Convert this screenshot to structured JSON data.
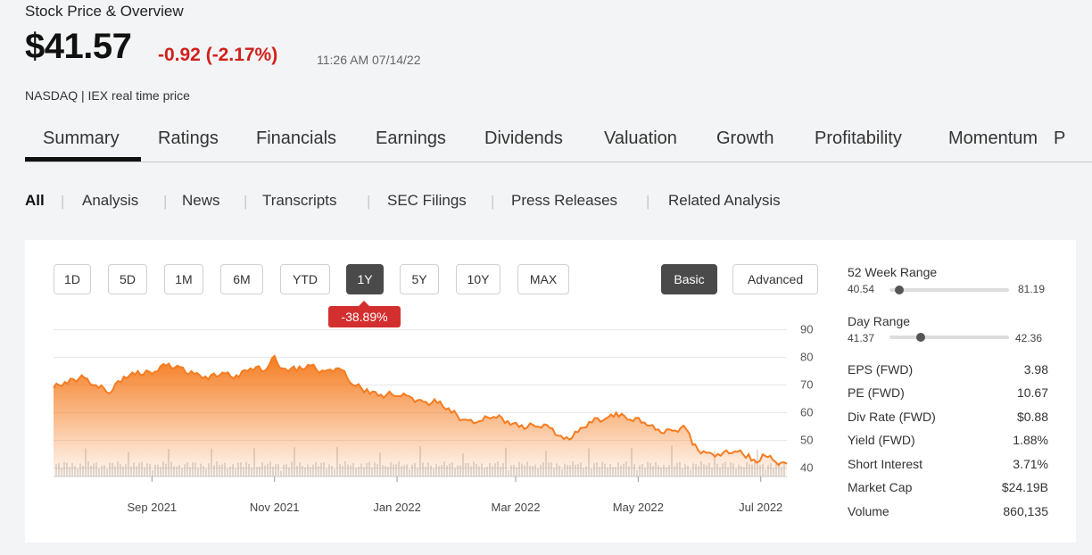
{
  "header": {
    "section_title": "Stock Price & Overview",
    "price": "$41.57",
    "change": "-0.92 (-2.17%)",
    "timestamp": "11:26 AM 07/14/22",
    "exchange_note": "NASDAQ | IEX real time price"
  },
  "tabs": [
    "Summary",
    "Ratings",
    "Financials",
    "Earnings",
    "Dividends",
    "Valuation",
    "Growth",
    "Profitability",
    "Momentum",
    "P"
  ],
  "active_tab": "Summary",
  "subnav": [
    "All",
    "Analysis",
    "News",
    "Transcripts",
    "SEC Filings",
    "Press Releases",
    "Related Analysis"
  ],
  "active_subnav": "All",
  "ranges": [
    "1D",
    "5D",
    "1M",
    "6M",
    "YTD",
    "1Y",
    "5Y",
    "10Y",
    "MAX"
  ],
  "active_range": "1Y",
  "range_change_badge": "-38.89%",
  "modes": {
    "basic": "Basic",
    "advanced": "Advanced",
    "active": "Basic"
  },
  "stats": {
    "week52": {
      "label": "52 Week Range",
      "low": "40.54",
      "high": "81.19",
      "current": 41.57
    },
    "day": {
      "label": "Day Range",
      "low": "41.37",
      "high": "42.36",
      "current": 41.57
    },
    "rows": [
      {
        "label": "EPS (FWD)",
        "value": "3.98"
      },
      {
        "label": "PE (FWD)",
        "value": "10.67"
      },
      {
        "label": "Div Rate (FWD)",
        "value": "$0.88"
      },
      {
        "label": "Yield (FWD)",
        "value": "1.88%"
      },
      {
        "label": "Short Interest",
        "value": "3.71%"
      },
      {
        "label": "Market Cap",
        "value": "$24.19B"
      },
      {
        "label": "Volume",
        "value": "860,135"
      }
    ]
  },
  "colors": {
    "accent": "#f57c20",
    "negative": "#d0211c",
    "active_button": "#4a4a4a"
  },
  "chart_data": {
    "type": "area",
    "xlabel": "",
    "ylabel": "",
    "ylim": [
      37,
      93
    ],
    "yticks": [
      "90",
      "80",
      "70",
      "60",
      "50",
      "40"
    ],
    "x_ticks": [
      "Sep 2021",
      "Nov 2021",
      "Jan 2022",
      "Mar 2022",
      "May 2022",
      "Jul 2022"
    ],
    "x_start": "2021-07-14",
    "x_end": "2022-07-14",
    "series": [
      {
        "points": [
          [
            "2021-07-14",
            69.0
          ],
          [
            "2021-07-21",
            70.5
          ],
          [
            "2021-07-28",
            73.5
          ],
          [
            "2021-08-04",
            70.0
          ],
          [
            "2021-08-11",
            67.0
          ],
          [
            "2021-08-18",
            73.0
          ],
          [
            "2021-08-25",
            75.0
          ],
          [
            "2021-09-01",
            74.0
          ],
          [
            "2021-09-08",
            77.0
          ],
          [
            "2021-09-15",
            76.5
          ],
          [
            "2021-09-22",
            74.0
          ],
          [
            "2021-09-29",
            72.0
          ],
          [
            "2021-10-06",
            74.5
          ],
          [
            "2021-10-13",
            73.5
          ],
          [
            "2021-10-20",
            76.0
          ],
          [
            "2021-10-27",
            75.0
          ],
          [
            "2021-11-01",
            80.5
          ],
          [
            "2021-11-05",
            76.0
          ],
          [
            "2021-11-12",
            75.0
          ],
          [
            "2021-11-19",
            77.0
          ],
          [
            "2021-11-26",
            75.0
          ],
          [
            "2021-12-03",
            76.0
          ],
          [
            "2021-12-10",
            70.0
          ],
          [
            "2021-12-17",
            68.5
          ],
          [
            "2021-12-24",
            66.5
          ],
          [
            "2021-12-31",
            66.0
          ],
          [
            "2022-01-07",
            66.0
          ],
          [
            "2022-01-14",
            64.0
          ],
          [
            "2022-01-21",
            63.5
          ],
          [
            "2022-01-28",
            60.0
          ],
          [
            "2022-02-04",
            57.5
          ],
          [
            "2022-02-11",
            57.0
          ],
          [
            "2022-02-18",
            58.5
          ],
          [
            "2022-02-25",
            57.0
          ],
          [
            "2022-03-04",
            55.5
          ],
          [
            "2022-03-11",
            55.0
          ],
          [
            "2022-03-18",
            54.5
          ],
          [
            "2022-03-25",
            50.5
          ],
          [
            "2022-04-01",
            53.0
          ],
          [
            "2022-04-08",
            56.5
          ],
          [
            "2022-04-15",
            58.0
          ],
          [
            "2022-04-20",
            60.0
          ],
          [
            "2022-04-27",
            57.5
          ],
          [
            "2022-05-04",
            56.5
          ],
          [
            "2022-05-11",
            54.0
          ],
          [
            "2022-05-18",
            53.5
          ],
          [
            "2022-05-25",
            54.0
          ],
          [
            "2022-05-28",
            48.5
          ],
          [
            "2022-06-04",
            45.5
          ],
          [
            "2022-06-11",
            44.5
          ],
          [
            "2022-06-18",
            46.0
          ],
          [
            "2022-06-25",
            45.0
          ],
          [
            "2022-06-29",
            42.0
          ],
          [
            "2022-07-02",
            45.0
          ],
          [
            "2022-07-07",
            43.0
          ],
          [
            "2022-07-14",
            41.6
          ]
        ]
      }
    ],
    "volume_shown": true
  }
}
